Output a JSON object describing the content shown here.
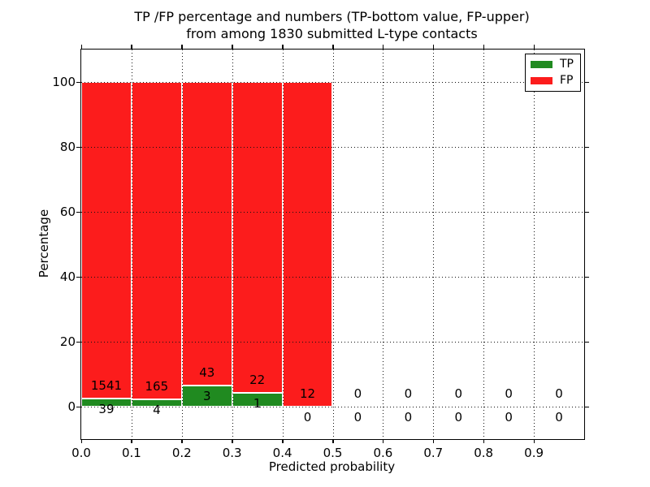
{
  "figure": {
    "title_line1": "TP /FP percentage and numbers (TP-bottom value, FP-upper)",
    "title_line2": "from among 1830 submitted L-type contacts"
  },
  "chart_data": {
    "type": "bar",
    "stacking": "percentage_stacked",
    "title": "TP /FP percentage and numbers (TP-bottom value, FP-upper) from among 1830 submitted L-type contacts",
    "xlabel": "Predicted probability",
    "ylabel": "Percentage",
    "xlim": [
      0.0,
      1.0
    ],
    "ylim": [
      -10,
      110
    ],
    "x_tick_labels": [
      "0.0",
      "0.1",
      "0.2",
      "0.3",
      "0.4",
      "0.5",
      "0.6",
      "0.7",
      "0.8",
      "0.9"
    ],
    "y_tick_values": [
      0,
      20,
      40,
      60,
      80,
      100
    ],
    "grid": "dotted",
    "legend_position": "upper-right",
    "total_submitted_contacts": 1830,
    "categories": [
      "0.0-0.1",
      "0.1-0.2",
      "0.2-0.3",
      "0.3-0.4",
      "0.4-0.5",
      "0.5-0.6",
      "0.6-0.7",
      "0.7-0.8",
      "0.8-0.9",
      "0.9-1.0"
    ],
    "series": [
      {
        "name": "TP",
        "color": "#208a20",
        "values": [
          39,
          4,
          3,
          1,
          0,
          0,
          0,
          0,
          0,
          0
        ]
      },
      {
        "name": "FP",
        "color": "#fc1c1c",
        "values": [
          1541,
          165,
          43,
          22,
          12,
          0,
          0,
          0,
          0,
          0
        ]
      }
    ],
    "bar_edge_color": "#ffffff",
    "axis_color": "#000000"
  }
}
